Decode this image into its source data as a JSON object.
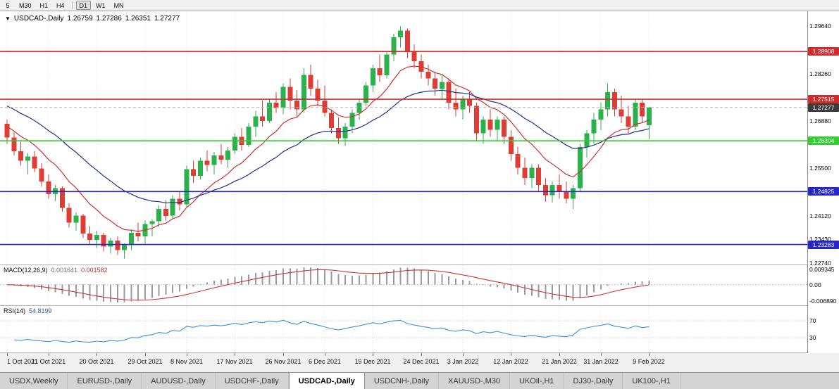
{
  "toolbar": {
    "timeframes": [
      "5",
      "M30",
      "H1",
      "H4",
      "D1",
      "W1",
      "MN"
    ],
    "active_timeframe": "D1",
    "separator_after_index": 3
  },
  "chart_header": {
    "dropdown_icon": "▼",
    "symbol_period": "USDCAD-,Daily",
    "open": "1.26759",
    "high": "1.27286",
    "low": "1.26351",
    "close": "1.27277"
  },
  "price_axis": {
    "scale_max": 1.3008,
    "scale_min": 1.227,
    "ticks": [
      {
        "label": "1.29640",
        "value": 1.2964
      },
      {
        "label": "1.28260",
        "value": 1.2826
      },
      {
        "label": "1.26880",
        "value": 1.2688
      },
      {
        "label": "1.25500",
        "value": 1.255
      },
      {
        "label": "1.24120",
        "value": 1.2412
      },
      {
        "label": "1.23430",
        "value": 1.2343
      },
      {
        "label": "1.22740",
        "value": 1.2274
      }
    ]
  },
  "levels": [
    {
      "label": "1.28908",
      "value": 1.28908,
      "color": "#d22b2b",
      "kind": "resistance"
    },
    {
      "label": "1.27515",
      "value": 1.27515,
      "color": "#d22b2b",
      "kind": "resistance"
    },
    {
      "label": "1.26304",
      "value": 1.26304,
      "color": "#33cc33",
      "kind": "support"
    },
    {
      "label": "1.24825",
      "value": 1.24825,
      "color": "#2727c9",
      "kind": "support"
    },
    {
      "label": "1.23283",
      "value": 1.23283,
      "color": "#2727c9",
      "kind": "support"
    }
  ],
  "current_price": {
    "label": "1.27277",
    "value": 1.27277,
    "badge_color": "#3c3c3c",
    "line_color": "#b5b5b5"
  },
  "date_axis": {
    "ticks": [
      {
        "label": "1 Oct 2021",
        "index": 0
      },
      {
        "label": "11 Oct 2021",
        "index": 6
      },
      {
        "label": "20 Oct 2021",
        "index": 13
      },
      {
        "label": "29 Oct 2021",
        "index": 20
      },
      {
        "label": "8 Nov 2021",
        "index": 26
      },
      {
        "label": "17 Nov 2021",
        "index": 33
      },
      {
        "label": "26 Nov 2021",
        "index": 40
      },
      {
        "label": "6 Dec 2021",
        "index": 46
      },
      {
        "label": "15 Dec 2021",
        "index": 53
      },
      {
        "label": "24 Dec 2021",
        "index": 60
      },
      {
        "label": "3 Jan 2022",
        "index": 66
      },
      {
        "label": "12 Jan 2022",
        "index": 73
      },
      {
        "label": "21 Jan 2022",
        "index": 80
      },
      {
        "label": "31 Jan 2022",
        "index": 86
      },
      {
        "label": "9 Feb 2022",
        "index": 93
      }
    ]
  },
  "macd_panel": {
    "title": "MACD(12,26,9)",
    "value_main": "0.001641",
    "value_signal": "0.001582",
    "axis_top": "0.009345",
    "axis_zero": "0.00",
    "axis_bottom": "-0.006890",
    "params": {
      "fast": 12,
      "slow": 26,
      "signal": 9
    }
  },
  "rsi_panel": {
    "title": "RSI(14)",
    "value": "54.8199",
    "period": 14,
    "levels": [
      70,
      30
    ]
  },
  "tabs": [
    "USDX,Weekly",
    "EURUSD-,Daily",
    "AUDUSD-,Daily",
    "USDCHF-,Daily",
    "USDCAD-,Daily",
    "USDCNH-,Daily",
    "XAUUSD-,M30",
    "UKOil-,H1",
    "DJ30-,Daily",
    "UK100-,H1"
  ],
  "active_tab": "USDCAD-,Daily",
  "chart_data": {
    "type": "candlestick",
    "symbol": "USDCAD-",
    "timeframe": "Daily",
    "ohlc_last": {
      "open": 1.26759,
      "high": 1.27286,
      "low": 1.26351,
      "close": 1.27277
    },
    "overlays": [
      {
        "name": "ma-fast",
        "type": "ema",
        "period": 10,
        "seed": 1.2672,
        "color": "#cc3333"
      },
      {
        "name": "ma-slow",
        "type": "ema",
        "period": 25,
        "seed": 1.2732,
        "color": "#22308f"
      }
    ],
    "colors": {
      "bull": "#2bb24c",
      "bear": "#dd3d35",
      "histogram": "#9b9b9b",
      "macd_signal": "#cc3333",
      "rsi_line": "#3f8fdf",
      "grid": "#e2e2e2"
    },
    "candles": [
      [
        1.268,
        1.2692,
        1.2622,
        1.264
      ],
      [
        1.264,
        1.2655,
        1.2588,
        1.26
      ],
      [
        1.26,
        1.2628,
        1.2558,
        1.2572
      ],
      [
        1.2572,
        1.2595,
        1.2532,
        1.2585
      ],
      [
        1.2585,
        1.26,
        1.254,
        1.255
      ],
      [
        1.255,
        1.2565,
        1.2498,
        1.2512
      ],
      [
        1.2512,
        1.2532,
        1.2462,
        1.2475
      ],
      [
        1.2475,
        1.2502,
        1.2455,
        1.2492
      ],
      [
        1.2492,
        1.2498,
        1.2424,
        1.2435
      ],
      [
        1.2435,
        1.2448,
        1.2378,
        1.2392
      ],
      [
        1.2392,
        1.2422,
        1.2368,
        1.2412
      ],
      [
        1.2412,
        1.2418,
        1.2348,
        1.236
      ],
      [
        1.236,
        1.2382,
        1.2328,
        1.2342
      ],
      [
        1.2342,
        1.2368,
        1.2318,
        1.2356
      ],
      [
        1.2356,
        1.2362,
        1.2308,
        1.2322
      ],
      [
        1.2322,
        1.2348,
        1.2302,
        1.234
      ],
      [
        1.234,
        1.2352,
        1.2298,
        1.2312
      ],
      [
        1.2312,
        1.2332,
        1.2287,
        1.2326
      ],
      [
        1.2326,
        1.2372,
        1.2312,
        1.2362
      ],
      [
        1.2362,
        1.2392,
        1.2338,
        1.2352
      ],
      [
        1.2352,
        1.2398,
        1.233,
        1.2388
      ],
      [
        1.2388,
        1.2402,
        1.2352,
        1.2396
      ],
      [
        1.2396,
        1.2442,
        1.238,
        1.2432
      ],
      [
        1.2432,
        1.2458,
        1.2398,
        1.2412
      ],
      [
        1.2412,
        1.2472,
        1.2402,
        1.2462
      ],
      [
        1.2462,
        1.2482,
        1.2428,
        1.2445
      ],
      [
        1.2445,
        1.2558,
        1.2438,
        1.2548
      ],
      [
        1.2548,
        1.2572,
        1.2508,
        1.2528
      ],
      [
        1.2528,
        1.2582,
        1.2518,
        1.2572
      ],
      [
        1.2572,
        1.2602,
        1.2542,
        1.256
      ],
      [
        1.256,
        1.2598,
        1.2532,
        1.2588
      ],
      [
        1.2588,
        1.2622,
        1.2562,
        1.2575
      ],
      [
        1.2575,
        1.2612,
        1.2552,
        1.2602
      ],
      [
        1.2602,
        1.2652,
        1.2592,
        1.2642
      ],
      [
        1.2642,
        1.2668,
        1.2602,
        1.2618
      ],
      [
        1.2618,
        1.2682,
        1.2612,
        1.2672
      ],
      [
        1.2672,
        1.2718,
        1.2642,
        1.2702
      ],
      [
        1.2702,
        1.2748,
        1.2672,
        1.2688
      ],
      [
        1.2688,
        1.2752,
        1.2682,
        1.2742
      ],
      [
        1.2742,
        1.2772,
        1.2712,
        1.2726
      ],
      [
        1.2726,
        1.2798,
        1.2708,
        1.2788
      ],
      [
        1.2788,
        1.2812,
        1.2722,
        1.2748
      ],
      [
        1.2748,
        1.2778,
        1.2702,
        1.2722
      ],
      [
        1.2722,
        1.2842,
        1.2712,
        1.2822
      ],
      [
        1.2822,
        1.2852,
        1.2762,
        1.2782
      ],
      [
        1.2782,
        1.2808,
        1.2732,
        1.2748
      ],
      [
        1.2748,
        1.2792,
        1.2702,
        1.2712
      ],
      [
        1.2712,
        1.2722,
        1.2652,
        1.2668
      ],
      [
        1.2668,
        1.2698,
        1.2622,
        1.2638
      ],
      [
        1.2638,
        1.2682,
        1.2615,
        1.2672
      ],
      [
        1.2672,
        1.2722,
        1.2652,
        1.2712
      ],
      [
        1.2712,
        1.2752,
        1.2692,
        1.2742
      ],
      [
        1.2742,
        1.2802,
        1.2732,
        1.2792
      ],
      [
        1.2792,
        1.2852,
        1.2772,
        1.2842
      ],
      [
        1.2842,
        1.2882,
        1.2802,
        1.2822
      ],
      [
        1.2822,
        1.2892,
        1.2812,
        1.2882
      ],
      [
        1.2882,
        1.2942,
        1.2862,
        1.2932
      ],
      [
        1.2932,
        1.2964,
        1.2902,
        1.2952
      ],
      [
        1.2952,
        1.2958,
        1.2872,
        1.2892
      ],
      [
        1.2892,
        1.2912,
        1.2842,
        1.2862
      ],
      [
        1.2862,
        1.2882,
        1.2812,
        1.2832
      ],
      [
        1.2832,
        1.2852,
        1.2792,
        1.2812
      ],
      [
        1.2812,
        1.2832,
        1.2762,
        1.2782
      ],
      [
        1.2782,
        1.2822,
        1.2752,
        1.2802
      ],
      [
        1.2802,
        1.2812,
        1.2722,
        1.2742
      ],
      [
        1.2742,
        1.2782,
        1.2702,
        1.2722
      ],
      [
        1.2722,
        1.2762,
        1.2692,
        1.2752
      ],
      [
        1.2752,
        1.2772,
        1.2712,
        1.2732
      ],
      [
        1.2732,
        1.2742,
        1.2632,
        1.2652
      ],
      [
        1.2652,
        1.2702,
        1.2622,
        1.2692
      ],
      [
        1.2692,
        1.2722,
        1.2642,
        1.2662
      ],
      [
        1.2662,
        1.2702,
        1.2632,
        1.2692
      ],
      [
        1.2692,
        1.2702,
        1.2622,
        1.2642
      ],
      [
        1.2642,
        1.2662,
        1.2572,
        1.2592
      ],
      [
        1.2592,
        1.2612,
        1.2532,
        1.2552
      ],
      [
        1.2552,
        1.2582,
        1.2502,
        1.2522
      ],
      [
        1.2522,
        1.2562,
        1.2492,
        1.2552
      ],
      [
        1.2552,
        1.2562,
        1.2482,
        1.2502
      ],
      [
        1.2502,
        1.2522,
        1.2452,
        1.2472
      ],
      [
        1.2472,
        1.2512,
        1.245,
        1.2502
      ],
      [
        1.2502,
        1.2532,
        1.2462,
        1.2482
      ],
      [
        1.2482,
        1.2512,
        1.2448,
        1.2462
      ],
      [
        1.2462,
        1.2502,
        1.2432,
        1.2492
      ],
      [
        1.2492,
        1.2622,
        1.2482,
        1.2612
      ],
      [
        1.2612,
        1.2662,
        1.2582,
        1.2652
      ],
      [
        1.2652,
        1.2712,
        1.2622,
        1.2692
      ],
      [
        1.2692,
        1.2742,
        1.2662,
        1.2722
      ],
      [
        1.2722,
        1.2797,
        1.2702,
        1.2772
      ],
      [
        1.2772,
        1.2782,
        1.2702,
        1.2722
      ],
      [
        1.2722,
        1.2762,
        1.2682,
        1.2702
      ],
      [
        1.2702,
        1.2732,
        1.2652,
        1.2672
      ],
      [
        1.2672,
        1.2752,
        1.2662,
        1.2742
      ],
      [
        1.2742,
        1.2752,
        1.2682,
        1.2702
      ],
      [
        1.26759,
        1.27286,
        1.26351,
        1.27277
      ]
    ]
  }
}
